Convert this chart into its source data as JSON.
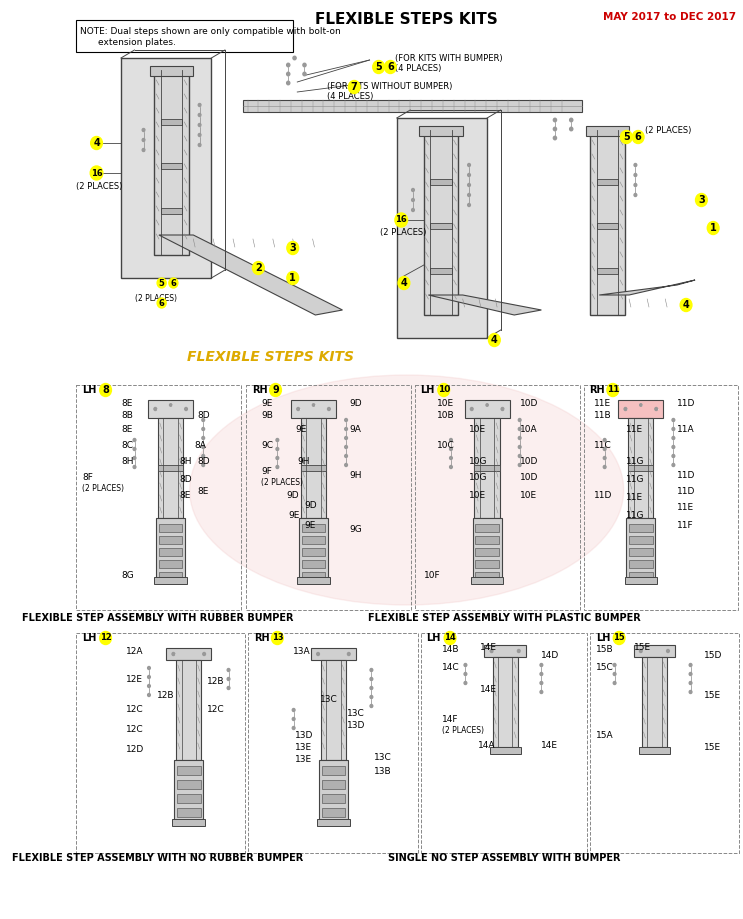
{
  "title": "FLEXIBLE STEPS KITS",
  "date_note": "MAY 2017 to DEC 2017",
  "note_line1": "NOTE: Dual steps shown are only compatible with bolt-on",
  "note_line2": "extension plates.",
  "subtitle": "FLEXIBLE STEPS KITS",
  "bg": "#ffffff",
  "title_color": "#000000",
  "date_color": "#cc0000",
  "subtitle_color": "#ddaa00",
  "yellow": "#ffff00",
  "gray_dark": "#444444",
  "gray_mid": "#888888",
  "gray_light": "#cccccc",
  "pink_fill": "#f5c0c0",
  "label1": "FLEXIBLE STEP ASSEMBLY WITH RUBBER BUMPER",
  "label2": "FLEXIBLE STEP ASSEMBLY WITH PLASTIC BUMPER",
  "label3": "FLEXIBLE STEP ASSEMBLY WITH NO RUBBER BUMPER",
  "label4": "SINGLE NO STEP ASSEMBLY WITH BUMPER"
}
